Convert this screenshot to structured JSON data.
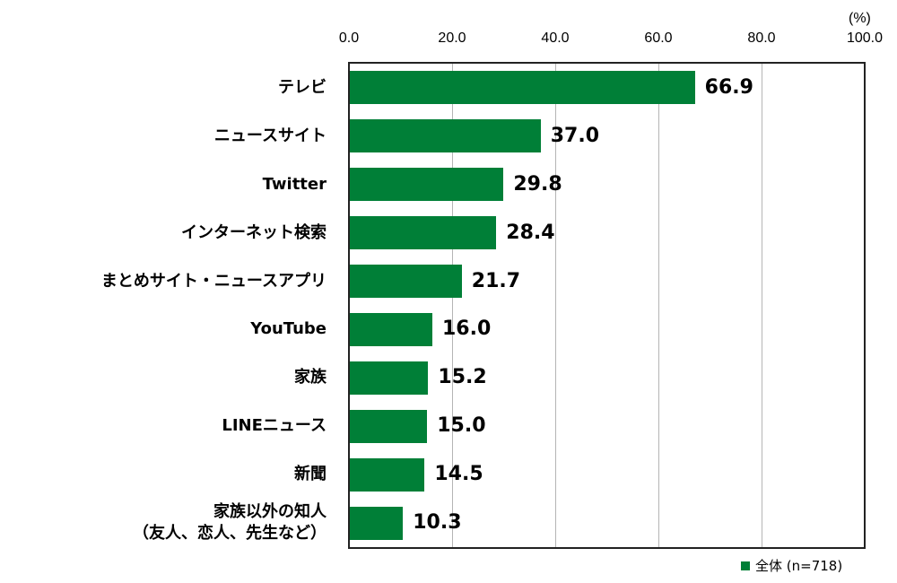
{
  "chart_data": {
    "type": "bar",
    "orientation": "horizontal",
    "title": "",
    "xlabel": "",
    "ylabel": "",
    "unit_label": "(%)",
    "xlim": [
      0,
      100
    ],
    "ticks": [
      "0.0",
      "20.0",
      "40.0",
      "60.0",
      "80.0",
      "100.0"
    ],
    "grid": true,
    "categories": [
      "テレビ",
      "ニュースサイト",
      "Twitter",
      "インターネット検索",
      "まとめサイト・ニュースアプリ",
      "YouTube",
      "家族",
      "LINEニュース",
      "新聞",
      "家族以外の知人\n（友人、恋人、先生など）"
    ],
    "series": [
      {
        "name": "全体 (n=718)",
        "color": "#007f37",
        "values": [
          66.9,
          37.0,
          29.8,
          28.4,
          21.7,
          16.0,
          15.2,
          15.0,
          14.5,
          10.3
        ]
      }
    ],
    "value_labels": [
      "66.9",
      "37.0",
      "29.8",
      "28.4",
      "21.7",
      "16.0",
      "15.2",
      "15.0",
      "14.5",
      "10.3"
    ],
    "legend_position": "bottom-right"
  },
  "labels": {
    "cat0": "テレビ",
    "cat1": "ニュースサイト",
    "cat2": "Twitter",
    "cat3": "インターネット検索",
    "cat4": "まとめサイト・ニュースアプリ",
    "cat5": "YouTube",
    "cat6": "家族",
    "cat7": "LINEニュース",
    "cat8": "新聞",
    "cat9a": "家族以外の知人",
    "cat9b": "（友人、恋人、先生など）"
  },
  "legend": {
    "label": "全体 (n=718)"
  }
}
